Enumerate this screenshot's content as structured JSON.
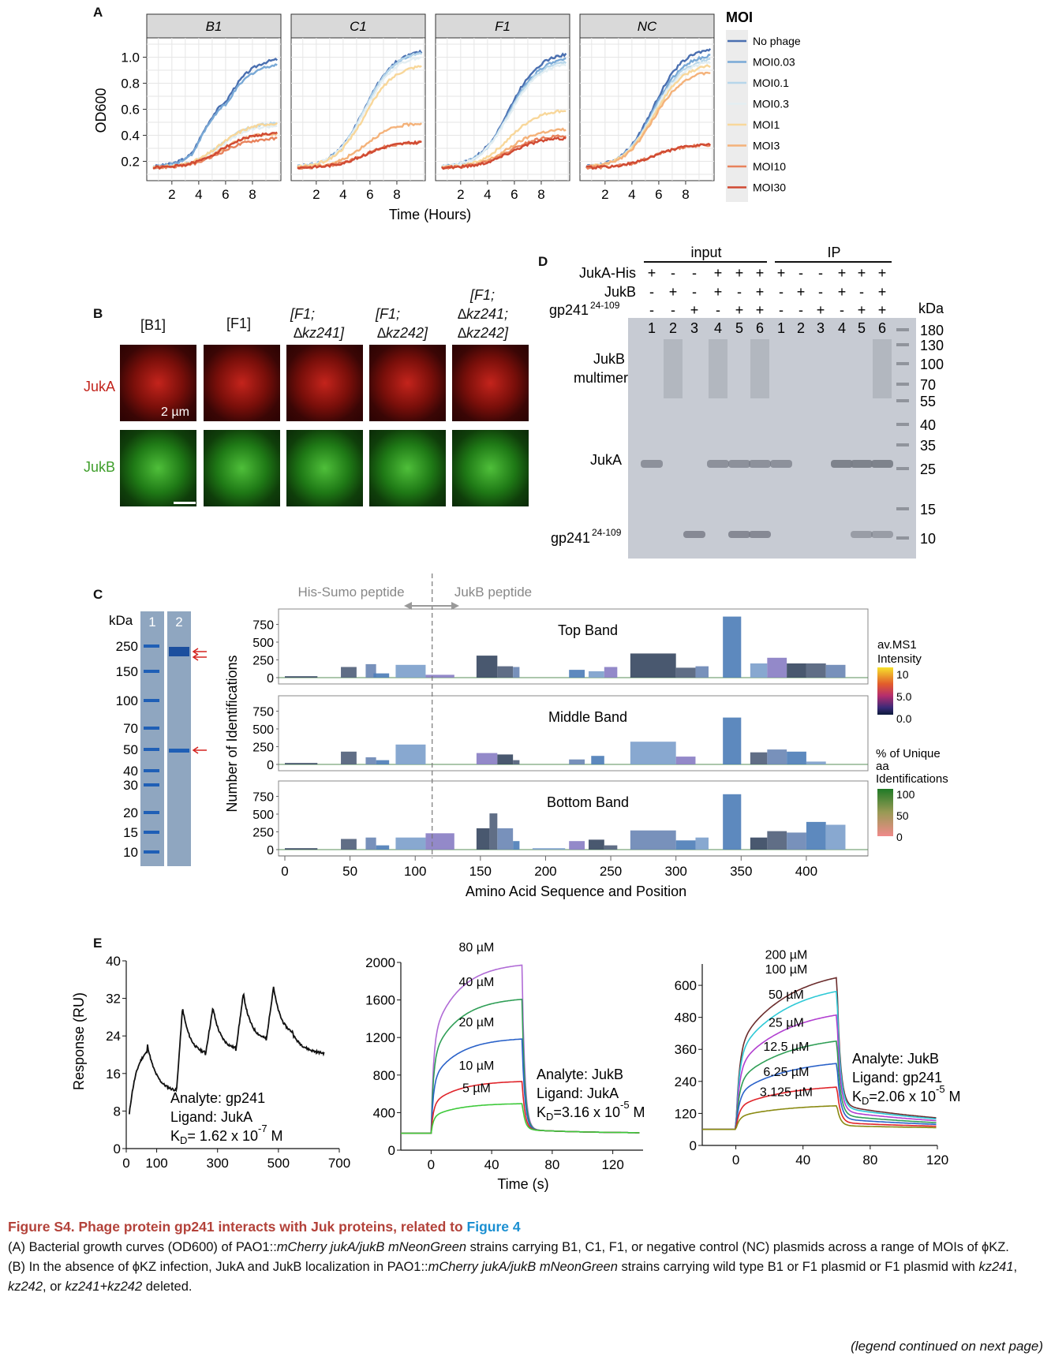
{
  "panelA": {
    "letter": "A",
    "ylabel": "OD600",
    "xlabel": "Time (Hours)",
    "facets": [
      "B1",
      "C1",
      "F1",
      "NC"
    ],
    "yticks": [
      "0.2",
      "0.4",
      "0.6",
      "0.8",
      "1.0"
    ],
    "xticks": [
      "2",
      "4",
      "6",
      "8"
    ],
    "legend_title": "MOI",
    "legend": [
      "No phage",
      "MOI0.03",
      "MOI0.1",
      "MOI0.3",
      "MOI1",
      "MOI3",
      "MOI10",
      "MOI30"
    ],
    "colors": [
      "#4a6fb0",
      "#79a9d6",
      "#b6d6ea",
      "#e3eef2",
      "#f8d79a",
      "#f4b27a",
      "#e8825c",
      "#d04a33"
    ]
  },
  "panelB": {
    "letter": "B",
    "columns": [
      "[B1]",
      "[F1]",
      "[F1;",
      "∆kz241]",
      "[F1;",
      "∆kz242]",
      "[F1;",
      "∆kz241;",
      "∆kz242]"
    ],
    "rows": [
      "JukA",
      "JukB"
    ],
    "scale": "2 µm"
  },
  "panelC": {
    "letter": "C",
    "kda_label": "kDa",
    "lanes": [
      "1",
      "2"
    ],
    "markers": [
      "250",
      "150",
      "100",
      "70",
      "50",
      "40",
      "30",
      "20",
      "15",
      "10"
    ],
    "region_left": "His-Sumo peptide",
    "region_right": "JukB peptide",
    "bands": [
      "Top Band",
      "Middle Band",
      "Bottom Band"
    ],
    "yticks": [
      "0",
      "250",
      "500",
      "750"
    ],
    "xticks": [
      "0",
      "50",
      "100",
      "150",
      "200",
      "250",
      "300",
      "350",
      "400"
    ],
    "ylabel": "Number of Identifications",
    "xlabel": "Amino Acid Sequence and Position",
    "legend1_title1": "av.MS1",
    "legend1_title2": "Intensity",
    "legend1_ticks": [
      "10",
      "5.0",
      "0.0"
    ],
    "legend2_title1": "% of Unique",
    "legend2_title2": "aa",
    "legend2_title3": "Identifications",
    "legend2_ticks": [
      "100",
      "50",
      "0"
    ]
  },
  "panelD": {
    "letter": "D",
    "group_input": "input",
    "group_ip": "IP",
    "row_labels": [
      "JukA-His",
      "JukB",
      "gp241"
    ],
    "gp_sup": "24-109",
    "signs": [
      [
        "+",
        "-",
        "-",
        "+",
        "+",
        "+",
        "+",
        "-",
        "-",
        "+",
        "+",
        "+"
      ],
      [
        "-",
        "+",
        "-",
        "+",
        "-",
        "+",
        "-",
        "+",
        "-",
        "+",
        "-",
        "+"
      ],
      [
        "-",
        "-",
        "+",
        "-",
        "+",
        "+",
        "-",
        "-",
        "+",
        "-",
        "+",
        "+"
      ]
    ],
    "lanes": [
      "1",
      "2",
      "3",
      "4",
      "5",
      "6",
      "1",
      "2",
      "3",
      "4",
      "5",
      "6"
    ],
    "kda_label": "kDa",
    "markers": [
      "180",
      "130",
      "100",
      "70",
      "55",
      "40",
      "35",
      "25",
      "15",
      "10"
    ],
    "label_jukb1": "JukB",
    "label_jukb2": "multimer",
    "label_juka": "JukA",
    "label_gp": "gp241"
  },
  "panelE": {
    "letter": "E",
    "ylabel": "Response (RU)",
    "xlabel": "Time (s)",
    "plot1": {
      "yticks": [
        "0",
        "8",
        "16",
        "24",
        "32",
        "40"
      ],
      "xticks": [
        "0",
        "100",
        "300",
        "500",
        "700"
      ],
      "analyte": "Analyte: gp241",
      "ligand": "Ligand: JukA",
      "kd_prefix": "K",
      "kd_sub": "D",
      "kd_val": "= 1.62 x 10",
      "kd_exp": "-7",
      "kd_unit": " M"
    },
    "plot2": {
      "yticks": [
        "0",
        "400",
        "800",
        "1200",
        "1600",
        "2000"
      ],
      "xticks": [
        "0",
        "40",
        "80",
        "120"
      ],
      "concs": [
        "80 µM",
        "40 µM",
        "20 µM",
        "10 µM",
        "5 µM"
      ],
      "colors": [
        "#b06bd6",
        "#2f9e56",
        "#2a62c9",
        "#e0242a",
        "#3ec93a"
      ],
      "levels": [
        1820,
        1450,
        1020,
        560,
        320
      ],
      "analyte": "Analyte: JukB",
      "ligand": "Ligand: JukA",
      "kd_prefix": "K",
      "kd_sub": "D",
      "kd_val": "=3.16 x 10",
      "kd_exp": "-5",
      "kd_unit": " M"
    },
    "plot3": {
      "yticks": [
        "0",
        "120",
        "240",
        "360",
        "480",
        "600"
      ],
      "xticks": [
        "0",
        "40",
        "80",
        "120"
      ],
      "concs": [
        "200 µM",
        "100 µM",
        "50 µM",
        "25 µM",
        "12.5 µM",
        "6.25 µM",
        "3.125 µM"
      ],
      "colors": [
        "#6b2d2d",
        "#2ec9d6",
        "#b13fd0",
        "#2f9e56",
        "#2a62c9",
        "#e0242a",
        "#8a8a12"
      ],
      "levels": [
        610,
        555,
        460,
        355,
        265,
        170,
        95
      ],
      "analyte": "Analyte: JukB",
      "ligand": "Ligand: gp241",
      "kd_prefix": "K",
      "kd_sub": "D",
      "kd_val": "=2.06 x 10",
      "kd_exp": "-5",
      "kd_unit": " M"
    }
  },
  "caption": {
    "title": "Figure S4.  Phage protein gp241 interacts with Juk proteins, related to ",
    "link": "Figure 4",
    "a1": "(A) Bacterial growth curves (OD600) of PAO1::",
    "a_it": "mCherry jukA/jukB mNeonGreen",
    "a2": " strains carrying B1, C1, F1, or negative control (NC) plasmids across a range of MOIs of ϕKZ.",
    "b1": "(B) In the absence of ϕKZ infection, JukA and JukB localization in PAO1::",
    "b_it": "mCherry jukA/jukB mNeonGreen",
    "b2": " strains carrying wild type B1 or F1 plasmid or F1 plasmid with ",
    "b_kz1": "kz241",
    "b_sep1": ", ",
    "b_kz2": "kz242",
    "b_sep2": ", or ",
    "b_kz3": "kz241+kz242",
    "b3": " deleted.",
    "continued": "(legend continued on next page)"
  }
}
